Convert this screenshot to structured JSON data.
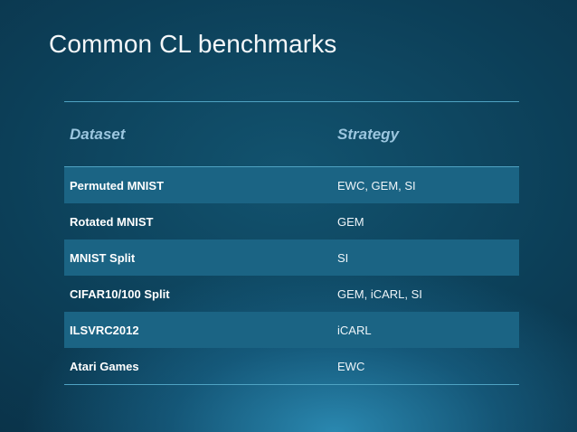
{
  "slide": {
    "title": "Common CL benchmarks"
  },
  "table": {
    "headers": [
      "Dataset",
      "Strategy"
    ],
    "rows": [
      {
        "dataset": "Permuted MNIST",
        "strategy": "EWC, GEM, SI",
        "shaded": true
      },
      {
        "dataset": "Rotated MNIST",
        "strategy": "GEM",
        "shaded": false
      },
      {
        "dataset": "MNIST Split",
        "strategy": "SI",
        "shaded": true
      },
      {
        "dataset": "CIFAR10/100 Split",
        "strategy": "GEM, iCARL, SI",
        "shaded": false
      },
      {
        "dataset": "ILSVRC2012",
        "strategy": "iCARL",
        "shaded": true
      },
      {
        "dataset": "Atari Games",
        "strategy": "EWC",
        "shaded": false
      }
    ]
  },
  "colors": {
    "background": "#0c3f58",
    "header_text": "#9bc6df",
    "rule": "#4fa3c3",
    "row_shade": "#1b6484"
  }
}
